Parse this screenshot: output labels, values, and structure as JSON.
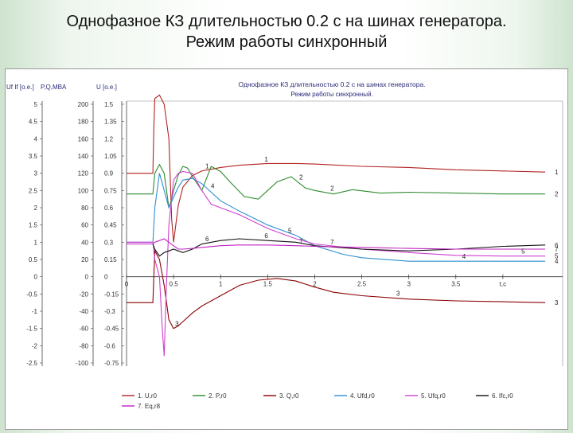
{
  "slide": {
    "title_line1": "Однофазное КЗ длительностью 0.2 с на шинах генератора.",
    "title_line2": "Режим работы синхронный"
  },
  "chart_data": {
    "type": "line",
    "title": "Однофазное КЗ длительностью 0.2 с на шинах генератора.",
    "subtitle": "Режим работы синхронный.",
    "xlabel": "t,c",
    "axis_headers": {
      "left1": "Uf If [o.e.]",
      "left2": "P,Q,MBA",
      "left3": "U [o.e.]"
    },
    "xlim": [
      0,
      4.5
    ],
    "ylim": [
      -2.5,
      5
    ],
    "x_ticks": [
      "0",
      "0.5",
      "1",
      "1.5",
      "2",
      "2.5",
      "3",
      "3.5",
      "t,c"
    ],
    "y_ticks_ufif": [
      "5",
      "4.5",
      "4",
      "3.5",
      "3",
      "2.5",
      "2",
      "1.5",
      "1",
      "0.5",
      "0",
      "-0.5",
      "-1",
      "-1.5",
      "-2",
      "-2.5"
    ],
    "y_ticks_pq": [
      "200",
      "180",
      "160",
      "140",
      "120",
      "100",
      "80",
      "60",
      "40",
      "20",
      "0",
      "-20",
      "-40",
      "-60",
      "-80",
      "-100"
    ],
    "y_ticks_u": [
      "1.5",
      "1.35",
      "1.2",
      "1.05",
      "0.9",
      "0.75",
      "0.6",
      "0.45",
      "0.3",
      "0.15",
      "0",
      "-0.15",
      "-0.3",
      "-0.45",
      "-0.6",
      "-0.75"
    ],
    "grid": false,
    "legend_position": "bottom",
    "series": [
      {
        "name": "1. U,r0",
        "label": "1",
        "color": "#b22222",
        "x": [
          0,
          0.28,
          0.29,
          0.3,
          0.35,
          0.4,
          0.45,
          0.48,
          0.5,
          0.55,
          0.6,
          0.7,
          0.8,
          1.0,
          1.2,
          1.5,
          1.8,
          2.0,
          2.5,
          3.0,
          3.5,
          4.0,
          4.45
        ],
        "y": [
          0.9,
          0.9,
          1.3,
          1.55,
          1.58,
          1.5,
          1.2,
          0.5,
          0.3,
          0.62,
          0.78,
          0.88,
          0.92,
          0.95,
          0.97,
          0.985,
          0.985,
          0.98,
          0.96,
          0.95,
          0.93,
          0.92,
          0.91
        ]
      },
      {
        "name": "2. P,r0",
        "label": "2",
        "color": "#2e8b2e",
        "x": [
          0,
          0.28,
          0.3,
          0.35,
          0.4,
          0.45,
          0.48,
          0.5,
          0.55,
          0.6,
          0.65,
          0.7,
          0.8,
          0.9,
          1.0,
          1.1,
          1.25,
          1.4,
          1.5,
          1.6,
          1.75,
          1.9,
          2.0,
          2.2,
          2.4,
          2.7,
          3.0,
          3.5,
          4.0,
          4.45
        ],
        "y": [
          96,
          96,
          120,
          130,
          120,
          80,
          90,
          100,
          118,
          128,
          126,
          116,
          100,
          128,
          122,
          110,
          93,
          90,
          100,
          110,
          116,
          103,
          100,
          96,
          101,
          97,
          98,
          97,
          96,
          96
        ]
      },
      {
        "name": "3. Q,r0",
        "label": "3",
        "color": "#8b0000",
        "x": [
          0,
          0.28,
          0.3,
          0.35,
          0.4,
          0.45,
          0.5,
          0.55,
          0.6,
          0.7,
          0.8,
          1.0,
          1.2,
          1.4,
          1.6,
          1.8,
          2.0,
          2.2,
          2.5,
          3.0,
          3.5,
          4.0,
          4.45
        ],
        "y": [
          -30,
          -30,
          30,
          20,
          -10,
          -50,
          -60,
          -57,
          -52,
          -42,
          -34,
          -22,
          -10,
          -4,
          -2,
          -5,
          -12,
          -18,
          -22,
          -26,
          -28,
          -29,
          -30
        ]
      },
      {
        "name": "4. Ufd,r0",
        "label": "4",
        "color": "#2f8fd0",
        "x": [
          0,
          0.28,
          0.3,
          0.35,
          0.4,
          0.45,
          0.5,
          0.55,
          0.6,
          0.7,
          0.8,
          1.0,
          1.2,
          1.5,
          1.8,
          2.0,
          2.3,
          2.5,
          3.0,
          3.5,
          4.0,
          4.45
        ],
        "y": [
          1.0,
          1.0,
          2.0,
          3.0,
          2.5,
          2.0,
          2.3,
          2.6,
          2.8,
          2.85,
          2.7,
          2.2,
          1.9,
          1.5,
          1.2,
          0.9,
          0.65,
          0.55,
          0.45,
          0.45,
          0.45,
          0.45
        ]
      },
      {
        "name": "5. Ufq,r0",
        "label": "5",
        "color": "#d040d0",
        "x": [
          0,
          0.28,
          0.3,
          0.35,
          0.38,
          0.4,
          0.42,
          0.45,
          0.5,
          0.55,
          0.6,
          0.7,
          0.8,
          0.9,
          1.0,
          1.2,
          1.5,
          1.8,
          2.0,
          2.5,
          3.0,
          3.5,
          4.0,
          4.45
        ],
        "y": [
          1.0,
          1.0,
          0.5,
          0.0,
          -1.5,
          -2.3,
          -0.5,
          1.5,
          2.8,
          3.0,
          3.05,
          3.0,
          2.5,
          2.1,
          2.0,
          1.8,
          1.4,
          1.1,
          0.95,
          0.8,
          0.7,
          0.62,
          0.6,
          0.6
        ]
      },
      {
        "name": "6. Ifc,r0",
        "label": "6",
        "color": "#111111",
        "x": [
          0,
          0.28,
          0.3,
          0.35,
          0.4,
          0.45,
          0.5,
          0.55,
          0.6,
          0.7,
          0.8,
          1.0,
          1.2,
          1.5,
          1.8,
          2.0,
          2.5,
          3.0,
          3.5,
          4.0,
          4.45
        ],
        "y": [
          0.95,
          0.95,
          0.8,
          0.6,
          0.7,
          0.75,
          0.8,
          0.75,
          0.7,
          0.8,
          0.95,
          1.05,
          1.1,
          1.05,
          1.0,
          0.9,
          0.8,
          0.75,
          0.8,
          0.88,
          0.92
        ]
      },
      {
        "name": "7. Eq,r8",
        "label": "7",
        "color": "#c020c0",
        "x": [
          0,
          0.28,
          0.3,
          0.35,
          0.4,
          0.45,
          0.5,
          0.55,
          0.6,
          0.7,
          0.8,
          1.0,
          1.2,
          1.5,
          1.8,
          2.0,
          2.5,
          3.0,
          3.5,
          4.0,
          4.45
        ],
        "y": [
          0.95,
          0.95,
          1.0,
          1.05,
          1.1,
          1.0,
          0.9,
          0.8,
          0.8,
          0.82,
          0.85,
          0.9,
          0.92,
          0.92,
          0.9,
          0.88,
          0.85,
          0.82,
          0.8,
          0.8,
          0.8
        ]
      }
    ]
  }
}
